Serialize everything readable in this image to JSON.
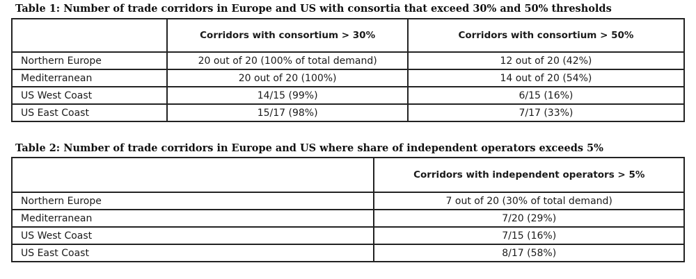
{
  "table1": {
    "caption": "Table 1: Number of trade corridors in Europe and US with consortia that exceed 30% and 50% thresholds",
    "headers": [
      "",
      "Corridors with consortium > 30%",
      "Corridors with consortium > 50%"
    ],
    "rows": [
      {
        "region": "Northern Europe",
        "over30": "20 out of 20 (100% of total demand)",
        "over50": "12 out of 20 (42%)"
      },
      {
        "region": "Mediterranean",
        "over30": "20 out of 20 (100%)",
        "over50": "14 out of 20 (54%)"
      },
      {
        "region": "US West Coast",
        "over30": "14/15 (99%)",
        "over50": "6/15 (16%)"
      },
      {
        "region": "US East Coast",
        "over30": "15/17 (98%)",
        "over50": "7/17 (33%)"
      }
    ]
  },
  "table2": {
    "caption": "Table 2: Number of trade corridors in Europe and US where share of independent operators exceeds 5%",
    "headers": [
      "",
      "Corridors with independent operators > 5%"
    ],
    "rows": [
      {
        "region": "Northern Europe",
        "over5": "7 out of 20 (30% of total demand)"
      },
      {
        "region": "Mediterranean",
        "over5": "7/20 (29%)"
      },
      {
        "region": "US West Coast",
        "over5": "7/15 (16%)"
      },
      {
        "region": "US East Coast",
        "over5": "8/17 (58%)"
      }
    ]
  }
}
